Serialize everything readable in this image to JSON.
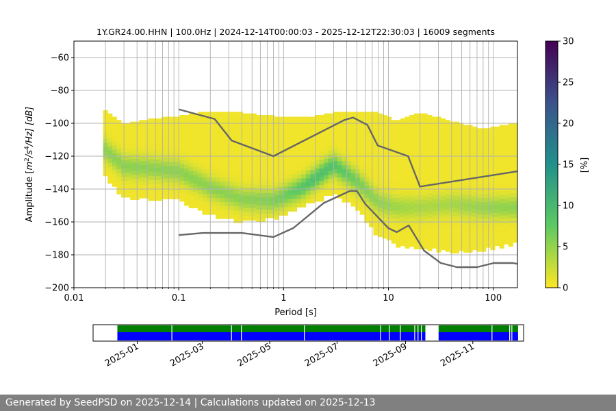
{
  "chart_data": {
    "type": "heatmap",
    "title": "1Y.GR24.00.HHN | 100.0Hz | 2024-12-14T00:00:03 - 2025-12-12T22:30:03 | 16009 segments",
    "xlabel": "Period [s]",
    "ylabel_parts": {
      "a": "Amplitude [",
      "m": "m",
      "e1": "2",
      "s": "/s",
      "e2": "4",
      "b": "/Hz] [dB]"
    },
    "x_scale": "log",
    "xlim": [
      0.01,
      170
    ],
    "ylim": [
      -200,
      -50
    ],
    "x_ticks": [
      {
        "v": 0.01,
        "label": "0.01"
      },
      {
        "v": 0.1,
        "label": "0.1"
      },
      {
        "v": 1,
        "label": "1"
      },
      {
        "v": 10,
        "label": "10"
      },
      {
        "v": 100,
        "label": "100"
      }
    ],
    "y_ticks": [
      {
        "v": -60,
        "label": "−60"
      },
      {
        "v": -80,
        "label": "−80"
      },
      {
        "v": -100,
        "label": "−100"
      },
      {
        "v": -120,
        "label": "−120"
      },
      {
        "v": -140,
        "label": "−140"
      },
      {
        "v": -160,
        "label": "−160"
      },
      {
        "v": -180,
        "label": "−180"
      },
      {
        "v": -200,
        "label": "−200"
      }
    ],
    "grid": true,
    "psd_envelope": {
      "period": [
        0.019,
        0.03,
        0.05,
        0.1,
        0.2,
        0.4,
        0.8,
        1.5,
        3,
        5,
        8,
        12,
        20,
        40,
        80,
        170
      ],
      "upper": [
        -91,
        -100,
        -97,
        -95,
        -92,
        -93,
        -95,
        -96,
        -93,
        -93,
        -93,
        -98,
        -93,
        -98,
        -103,
        -99
      ],
      "lower": [
        -130,
        -144,
        -145,
        -146,
        -155,
        -159,
        -157,
        -150,
        -142,
        -150,
        -168,
        -173,
        -175,
        -177,
        -176,
        -172
      ],
      "mode": [
        -114,
        -125,
        -126,
        -128,
        -138,
        -145,
        -146,
        -138,
        -124,
        -134,
        -147,
        -150,
        -150,
        -148,
        -150,
        -150
      ]
    },
    "nhnm": {
      "period": [
        0.1,
        0.22,
        0.32,
        0.8,
        3.8,
        4.6,
        6.3,
        7.9,
        15.4,
        20,
        354.8
      ],
      "values": [
        -91.5,
        -97.4,
        -110.5,
        -120.0,
        -98.0,
        -96.5,
        -101.0,
        -113.5,
        -120.0,
        -138.5,
        -126.0
      ]
    },
    "nlnm": {
      "period": [
        0.1,
        0.17,
        0.4,
        0.8,
        1.24,
        2.4,
        4.3,
        5.0,
        6.0,
        10.0,
        12.0,
        15.6,
        21.9,
        31.6,
        45,
        70,
        101,
        154,
        170
      ],
      "values": [
        -168.0,
        -166.7,
        -166.7,
        -169.2,
        -163.7,
        -148.6,
        -141.1,
        -141.1,
        -149.0,
        -163.8,
        -166.2,
        -162.1,
        -177.5,
        -185.0,
        -187.5,
        -187.5,
        -185.0,
        -185.0,
        -185.5
      ]
    },
    "colorbar": {
      "label": "[%]",
      "min": 0,
      "max": 30,
      "ticks": [
        {
          "v": 0,
          "label": "0"
        },
        {
          "v": 5,
          "label": "5"
        },
        {
          "v": 10,
          "label": "10"
        },
        {
          "v": 15,
          "label": "15"
        },
        {
          "v": 20,
          "label": "20"
        },
        {
          "v": 25,
          "label": "25"
        },
        {
          "v": 30,
          "label": "30"
        }
      ],
      "colormap": [
        "#fde725",
        "#5ec962",
        "#21918c",
        "#3b528b",
        "#440154"
      ]
    },
    "colors": {
      "noise_model_line": "#666666",
      "grid": "#b0b0b0",
      "data_availability": "#008000",
      "data_coverage": "#0000ff"
    },
    "timeline": {
      "start": "2024-12-14",
      "end": "2025-12-12",
      "month_ticks": [
        "2025-01",
        "2025-03",
        "2025-05",
        "2025-07",
        "2025-09",
        "2025-11"
      ],
      "coverage_intervals": [
        [
          "2024-12-14",
          "2025-09-19"
        ],
        [
          "2025-10-01",
          "2025-12-12"
        ]
      ],
      "small_gaps": [
        "2025-02-01",
        "2025-03-27",
        "2025-04-05",
        "2025-06-01",
        "2025-08-09",
        "2025-08-17",
        "2025-08-27",
        "2025-09-09",
        "2025-09-12",
        "2025-09-15",
        "2025-11-18",
        "2025-12-04",
        "2025-12-06"
      ]
    }
  },
  "footer": {
    "text": "Generated by SeedPSD on 2025-12-14 | Calculations updated on 2025-12-13"
  }
}
